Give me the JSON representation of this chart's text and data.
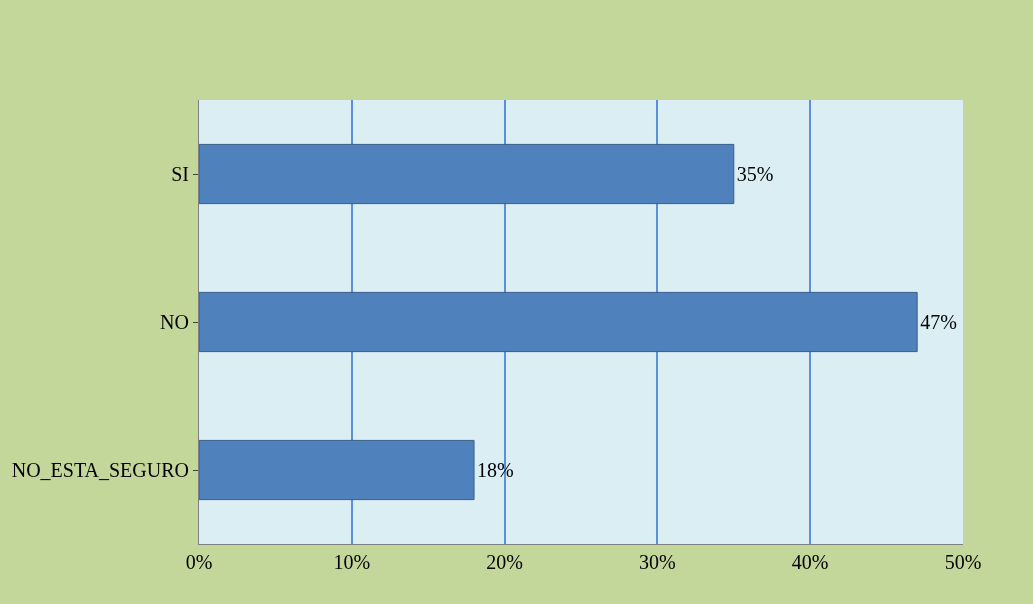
{
  "chart_data": {
    "type": "bar",
    "orientation": "horizontal",
    "categories": [
      "SI",
      "NO",
      "NO_ESTA_SEGURO"
    ],
    "values": [
      35,
      47,
      18
    ],
    "value_labels": [
      "35%",
      "47%",
      "18%"
    ],
    "color": "#4f81bd",
    "xlim": [
      0,
      50
    ],
    "xticks": [
      {
        "value": 0,
        "label": "0%"
      },
      {
        "value": 10,
        "label": "10%"
      },
      {
        "value": 20,
        "label": "20%"
      },
      {
        "value": 30,
        "label": "30%"
      },
      {
        "value": 40,
        "label": "40%"
      },
      {
        "value": 50,
        "label": "50%"
      }
    ],
    "grid": "x",
    "legend": false
  }
}
